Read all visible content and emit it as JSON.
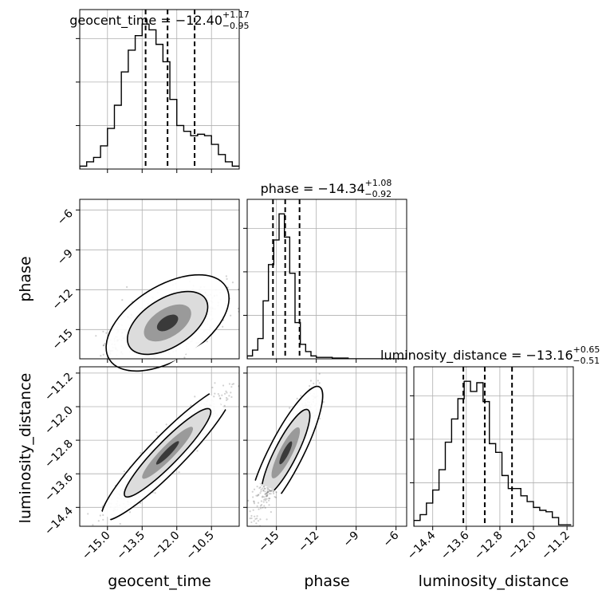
{
  "chart_data": {
    "type": "corner",
    "parameters": [
      "geocent_time",
      "phase",
      "luminosity_distance"
    ],
    "titles": [
      {
        "param": "geocent_time",
        "prefix": "geocent_time = ",
        "value": "−12.40",
        "plus": "+1.17",
        "minus": "−0.95"
      },
      {
        "param": "phase",
        "prefix": "phase = ",
        "value": "−14.34",
        "plus": "+1.08",
        "minus": "−0.92"
      },
      {
        "param": "luminosity_distance",
        "prefix": "luminosity_distance = ",
        "value": "−13.16",
        "plus": "+0.65",
        "minus": "−0.51"
      }
    ],
    "axis_labels": {
      "x": [
        "geocent_time",
        "phase",
        "luminosity_distance"
      ],
      "y": [
        "phase",
        "luminosity_distance"
      ]
    },
    "ranges": {
      "geocent_time": [
        -16.2,
        -9.3
      ],
      "phase": [
        -17.2,
        -5.2
      ],
      "luminosity_distance": [
        -14.85,
        -11.05
      ]
    },
    "ticks": {
      "geocent_time": {
        "values": [
          -15.0,
          -13.5,
          -12.0,
          -10.5
        ],
        "labels": [
          "−15.0",
          "−13.5",
          "−12.0",
          "−10.5"
        ]
      },
      "phase": {
        "values": [
          -15,
          -12,
          -9,
          -6
        ],
        "labels": [
          "−15",
          "−12",
          "−9",
          "−6"
        ]
      },
      "luminosity_distance": {
        "values": [
          -14.4,
          -13.6,
          -12.8,
          -12.0,
          -11.2
        ],
        "labels": [
          "−14.4",
          "−13.6",
          "−12.8",
          "−12.0",
          "−11.2"
        ]
      }
    },
    "quantiles": {
      "geocent_time": [
        -13.35,
        -12.4,
        -11.23
      ],
      "phase": [
        -15.26,
        -14.34,
        -13.26
      ],
      "luminosity_distance": [
        -13.67,
        -13.16,
        -12.51
      ]
    },
    "histograms": {
      "geocent_time": {
        "edges": [
          -16.2,
          -15.9,
          -15.6,
          -15.3,
          -15.0,
          -14.7,
          -14.4,
          -14.1,
          -13.8,
          -13.5,
          -13.2,
          -12.9,
          -12.6,
          -12.3,
          -12.0,
          -11.7,
          -11.4,
          -11.1,
          -10.8,
          -10.5,
          -10.2,
          -9.9,
          -9.6,
          -9.3
        ],
        "counts": [
          2,
          5,
          8,
          16,
          28,
          44,
          67,
          82,
          92,
          100,
          96,
          86,
          74,
          48,
          30,
          26,
          23,
          24,
          23,
          17,
          10,
          5,
          2
        ]
      },
      "phase": {
        "edges": [
          -17.2,
          -16.8,
          -16.4,
          -16.0,
          -15.6,
          -15.2,
          -14.8,
          -14.4,
          -14.0,
          -13.6,
          -13.2,
          -12.8,
          -12.4,
          -12.0,
          -11.6,
          -11.2,
          -10.8,
          -10.4,
          -10.0,
          -9.6,
          -9.2,
          -8.8,
          -8.4,
          -8.0,
          -7.6,
          -7.2,
          -6.8,
          -6.4,
          -6.0,
          -5.6,
          -5.2
        ],
        "counts": [
          2,
          6,
          14,
          40,
          65,
          82,
          100,
          84,
          59,
          25,
          10,
          5,
          2,
          1,
          1,
          1,
          0.5,
          0.5,
          0.5,
          0,
          0,
          0,
          0,
          0,
          0,
          0,
          0,
          0,
          0,
          0
        ]
      },
      "luminosity_distance": {
        "edges": [
          -14.85,
          -14.7,
          -14.55,
          -14.4,
          -14.25,
          -14.1,
          -13.95,
          -13.8,
          -13.65,
          -13.5,
          -13.35,
          -13.2,
          -13.05,
          -12.9,
          -12.75,
          -12.6,
          -12.45,
          -12.3,
          -12.15,
          -12.0,
          -11.85,
          -11.7,
          -11.55,
          -11.4,
          -11.25,
          -11.1
        ],
        "counts": [
          4,
          8,
          16,
          25,
          39,
          58,
          74,
          88,
          100,
          93,
          99,
          86,
          57,
          51,
          35,
          26,
          26,
          21,
          17,
          13,
          11,
          10,
          6,
          1,
          1
        ]
      }
    },
    "grid": true,
    "colors": {
      "line": "#000000",
      "grid": "#b0b0b0",
      "frame": "#000000",
      "scatter": "#000000"
    }
  }
}
